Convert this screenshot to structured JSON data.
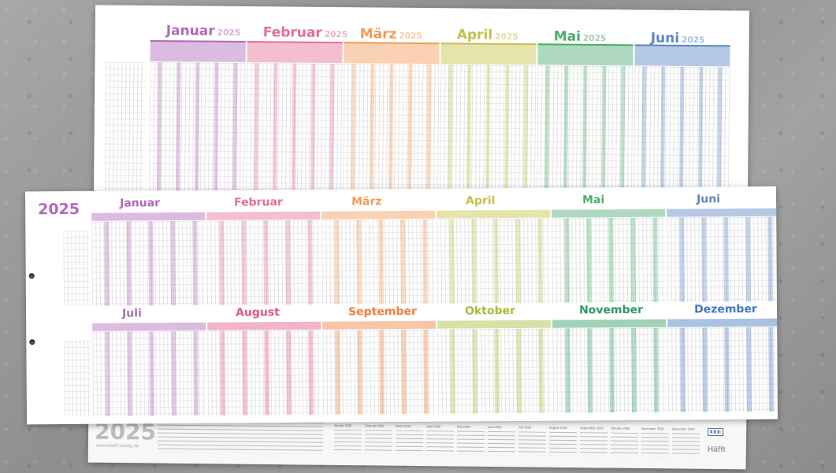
{
  "year": "2025",
  "website": "www.haeff-verlag.de",
  "brand": "Häfft",
  "colors": {
    "jan": "#b069b8",
    "feb": "#e36f96",
    "mar": "#f39a55",
    "apr": "#c7c04a",
    "may": "#4bab6e",
    "jun": "#5b86c6",
    "jul": "#b069b8",
    "aug": "#e05a7e",
    "sep": "#f07f3c",
    "oct": "#a9bb3c",
    "nov": "#2e9a62",
    "dec": "#3f78c4"
  },
  "back_sheet": {
    "months": [
      {
        "name": "Januar",
        "year": "2025",
        "key": "jan"
      },
      {
        "name": "Februar",
        "year": "2025",
        "key": "feb"
      },
      {
        "name": "März",
        "year": "2025",
        "key": "mar"
      },
      {
        "name": "April",
        "year": "2025",
        "key": "apr"
      },
      {
        "name": "Mai",
        "year": "2025",
        "key": "may"
      },
      {
        "name": "Juni",
        "year": "2025",
        "key": "jun"
      }
    ]
  },
  "front_sheet": {
    "row1": [
      {
        "name": "Januar",
        "key": "jan"
      },
      {
        "name": "Februar",
        "key": "feb"
      },
      {
        "name": "März",
        "key": "mar"
      },
      {
        "name": "April",
        "key": "apr"
      },
      {
        "name": "Mai",
        "key": "may"
      },
      {
        "name": "Juni",
        "key": "jun"
      }
    ],
    "row2": [
      {
        "name": "Juli",
        "key": "jul"
      },
      {
        "name": "August",
        "key": "aug"
      },
      {
        "name": "September",
        "key": "sep"
      },
      {
        "name": "Oktober",
        "key": "oct"
      },
      {
        "name": "November",
        "key": "nov"
      },
      {
        "name": "Dezember",
        "key": "dec"
      }
    ]
  },
  "bottom_strip": {
    "mini_months": [
      "Januar 2026",
      "Februar 2026",
      "März 2026",
      "April 2026",
      "Mai 2026",
      "Juni 2026",
      "Juli 2026",
      "August 2026",
      "September 2026",
      "Oktober 2026",
      "November 2026",
      "Dezember 2026"
    ]
  }
}
